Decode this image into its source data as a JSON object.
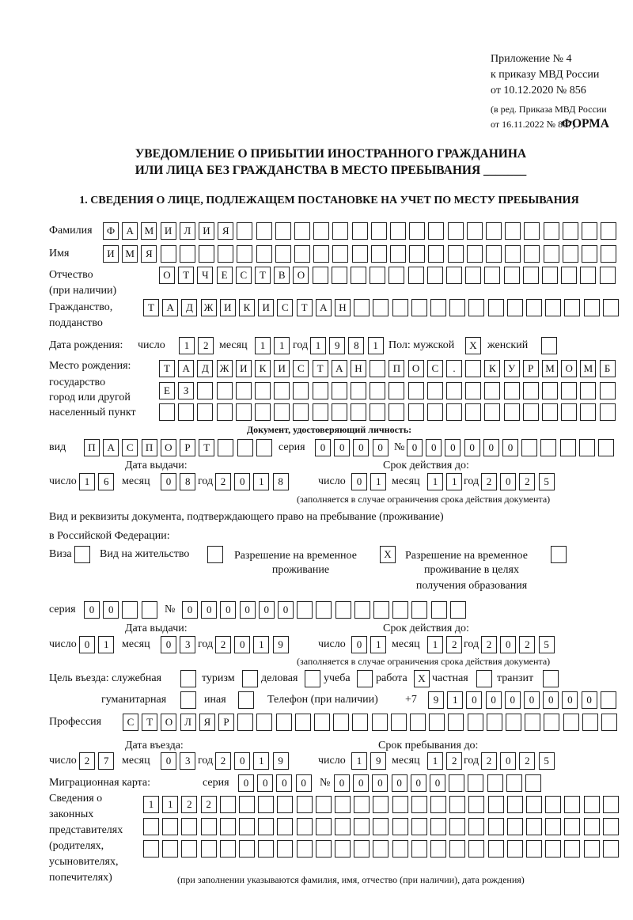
{
  "header": {
    "annex_line1": "Приложение № 4",
    "annex_line2": "к приказу МВД России",
    "annex_line3": "от 10.12.2020 № 856",
    "amendment_line1": "(в ред. Приказа МВД России",
    "amendment_line2": "от 16.11.2022 № 867)",
    "form_label": "ФОРМА"
  },
  "title": {
    "line1": "УВЕДОМЛЕНИЕ О ПРИБЫТИИ ИНОСТРАННОГО ГРАЖДАНИНА",
    "line2": "ИЛИ ЛИЦА БЕЗ ГРАЖДАНСТВА В МЕСТО ПРЕБЫВАНИЯ _______"
  },
  "section1": {
    "heading": "1. СВЕДЕНИЯ О ЛИЦЕ, ПОДЛЕЖАЩЕМ ПОСТАНОВКЕ НА УЧЕТ ПО МЕСТУ ПРЕБЫВАНИЯ"
  },
  "labels": {
    "surname": "Фамилия",
    "name": "Имя",
    "patronymic": "Отчество",
    "patronymic_note": "(при наличии)",
    "citizenship1": "Гражданство,",
    "citizenship2": "подданство",
    "birth_date": "Дата рождения:",
    "day": "число",
    "month": "месяц",
    "year": "год",
    "sex_male": "Пол: мужской",
    "sex_female": "женский",
    "birthplace1": "Место рождения:",
    "birthplace2": "государство",
    "birthplace3": "город или другой",
    "birthplace4": "населенный пункт",
    "id_doc_heading": "Документ, удостоверяющий личность:",
    "doc_type": "вид",
    "series": "серия",
    "number": "№",
    "issue_date": "Дата выдачи:",
    "valid_until": "Срок действия до:",
    "validity_note": "(заполняется в случае ограничения срока действия документа)",
    "right_doc1": "Вид и реквизиты документа, подтверждающего право на пребывание (проживание)",
    "right_doc2": "в Российской Федерации:",
    "visa": "Виза",
    "residence_permit": "Вид на жительство",
    "temp_residence1": "Разрешение на временное",
    "temp_residence2": "проживание",
    "temp_edu1": "Разрешение на временное",
    "temp_edu2": "проживание в целях",
    "temp_edu3": "получения образования",
    "purpose": "Цель въезда: служебная",
    "tourism": "туризм",
    "business": "деловая",
    "study": "учеба",
    "work": "работа",
    "private": "частная",
    "transit": "транзит",
    "humanitarian": "гуманитарная",
    "other": "иная",
    "phone": "Телефон (при наличии)",
    "phone_prefix": "+7",
    "profession": "Профессия",
    "entry_date": "Дата въезда:",
    "stay_until": "Срок пребывания до:",
    "migration_card": "Миграционная карта:",
    "reps1": "Сведения о",
    "reps2": "законных",
    "reps3": "представителях",
    "reps4": "(родителях,",
    "reps5": "усыновителях,",
    "reps6": "попечителях)",
    "reps_note": "(при заполнении указываются фамилия, имя, отчество (при наличии), дата рождения)"
  },
  "values": {
    "surname": "ФАМИЛИЯ",
    "name": "ИМЯ",
    "patronymic": "ОТЧЕСТВО",
    "citizenship": "ТАДЖИКИСТАН",
    "birth_day": "12",
    "birth_month": "11",
    "birth_year": "1981",
    "sex_male": "X",
    "sex_female": "",
    "birthplace_line1": "ТАДЖИКИСТАН ПОС. КУРМОМБ",
    "birthplace_line2": "ЕЗ",
    "birthplace_line3": "",
    "doc_type": "ПАСПОРТ",
    "doc_series": "0000",
    "doc_number": "000000",
    "doc_issue_day": "16",
    "doc_issue_month": "08",
    "doc_issue_year": "2018",
    "doc_valid_day": "01",
    "doc_valid_month": "11",
    "doc_valid_year": "2025",
    "visa": "",
    "residence_permit": "",
    "temp_residence": "X",
    "temp_edu": "",
    "right_series": "00",
    "right_number": "000000",
    "right_issue_day": "01",
    "right_issue_month": "03",
    "right_issue_year": "2019",
    "right_valid_day": "01",
    "right_valid_month": "12",
    "right_valid_year": "2025",
    "purpose_official": "",
    "purpose_tourism": "",
    "purpose_business": "",
    "purpose_study": "",
    "purpose_work": "X",
    "purpose_private": "",
    "purpose_transit": "",
    "purpose_humanitarian": "",
    "purpose_other": "",
    "phone": "910000000",
    "profession": "СТОЛЯР",
    "entry_day": "27",
    "entry_month": "03",
    "entry_year": "2019",
    "stay_day": "19",
    "stay_month": "12",
    "stay_year": "2025",
    "mc_series": "0000",
    "mc_number": "000000",
    "reps_line1": "1122",
    "reps_line2": "",
    "reps_line3": ""
  }
}
